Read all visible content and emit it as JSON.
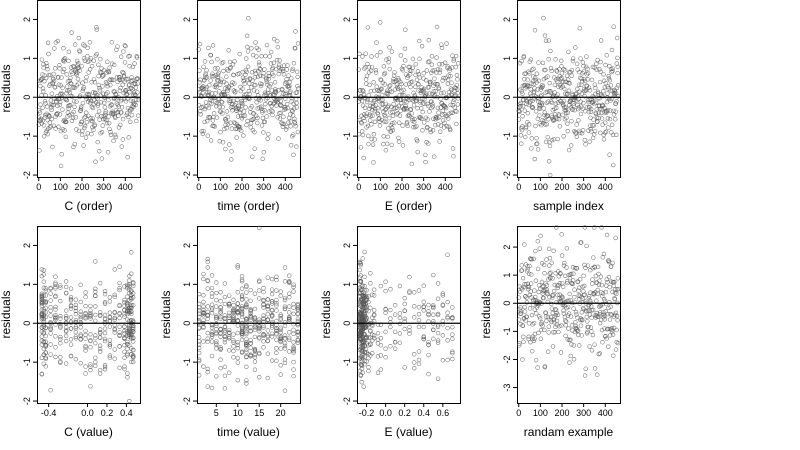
{
  "chart_data": [
    {
      "id": "c-order",
      "type": "scatter",
      "title": "",
      "xlabel": "C (order)",
      "ylabel": "residuals",
      "xlim": [
        -8,
        468
      ],
      "ylim": [
        -2.05,
        2.5
      ],
      "xticks": [
        0,
        100,
        200,
        300,
        400
      ],
      "xtick_labels": [
        "0",
        "100",
        "200",
        "300",
        "400"
      ],
      "yticks": [
        -2,
        -1,
        0,
        1,
        2
      ],
      "ytick_labels": [
        "-2",
        "-1",
        "0",
        "1",
        "2"
      ],
      "hline": 0,
      "points": {
        "distribution": "uniform-index",
        "n": 460,
        "seed": 11,
        "xmin": 0,
        "xmax": 460,
        "sd": 0.62
      },
      "color": "#555555"
    },
    {
      "id": "time-order",
      "type": "scatter",
      "title": "",
      "xlabel": "time (order)",
      "ylabel": "residuals",
      "xlim": [
        -8,
        468
      ],
      "ylim": [
        -2.05,
        2.5
      ],
      "xticks": [
        0,
        100,
        200,
        300,
        400
      ],
      "xtick_labels": [
        "0",
        "100",
        "200",
        "300",
        "400"
      ],
      "yticks": [
        -2,
        -1,
        0,
        1,
        2
      ],
      "ytick_labels": [
        "-2",
        "-1",
        "0",
        "1",
        "2"
      ],
      "hline": 0,
      "points": {
        "distribution": "uniform-index",
        "n": 460,
        "seed": 23,
        "xmin": 0,
        "xmax": 460,
        "sd": 0.62
      },
      "color": "#555555"
    },
    {
      "id": "e-order",
      "type": "scatter",
      "title": "",
      "xlabel": "E (order)",
      "ylabel": "residuals",
      "xlim": [
        -8,
        468
      ],
      "ylim": [
        -2.05,
        2.5
      ],
      "xticks": [
        0,
        100,
        200,
        300,
        400
      ],
      "xtick_labels": [
        "0",
        "100",
        "200",
        "300",
        "400"
      ],
      "yticks": [
        -2,
        -1,
        0,
        1,
        2
      ],
      "ytick_labels": [
        "-2",
        "-1",
        "0",
        "1",
        "2"
      ],
      "hline": 0,
      "points": {
        "distribution": "uniform-index",
        "n": 460,
        "seed": 37,
        "xmin": 0,
        "xmax": 460,
        "sd": 0.62
      },
      "color": "#555555"
    },
    {
      "id": "sample-index",
      "type": "scatter",
      "title": "",
      "xlabel": "sample index",
      "ylabel": "residuals",
      "xlim": [
        -8,
        468
      ],
      "ylim": [
        -2.05,
        2.5
      ],
      "xticks": [
        0,
        100,
        200,
        300,
        400
      ],
      "xtick_labels": [
        "0",
        "100",
        "200",
        "300",
        "400"
      ],
      "yticks": [
        -2,
        -1,
        0,
        1,
        2
      ],
      "ytick_labels": [
        "-2",
        "-1",
        "0",
        "1",
        "2"
      ],
      "hline": 0,
      "points": {
        "distribution": "uniform-index",
        "n": 460,
        "seed": 41,
        "xmin": 0,
        "xmax": 460,
        "sd": 0.62
      },
      "color": "#555555"
    },
    {
      "id": "c-value",
      "type": "scatter",
      "title": "",
      "xlabel": "C (value)",
      "ylabel": "residuals",
      "xlim": [
        -0.52,
        0.54
      ],
      "ylim": [
        -2.05,
        2.5
      ],
      "xticks": [
        -0.4,
        0.0,
        0.2,
        0.4
      ],
      "xtick_labels": [
        "-0.4",
        "0.0",
        "0.2",
        "0.4"
      ],
      "yticks": [
        -2,
        -1,
        0,
        1,
        2
      ],
      "ytick_labels": [
        "-2",
        "-1",
        "0",
        "1",
        "2"
      ],
      "hline": 0,
      "points": {
        "distribution": "levels",
        "seed": 53,
        "sd": 0.6,
        "levels": [
          -0.47,
          -0.45,
          -0.43,
          -0.38,
          -0.33,
          -0.28,
          -0.22,
          -0.17,
          -0.12,
          -0.07,
          -0.02,
          0.03,
          0.08,
          0.13,
          0.18,
          0.23,
          0.28,
          0.33,
          0.38,
          0.41,
          0.43,
          0.45,
          0.47
        ],
        "counts": [
          30,
          24,
          22,
          16,
          18,
          14,
          16,
          16,
          14,
          14,
          16,
          16,
          14,
          14,
          16,
          14,
          14,
          16,
          20,
          24,
          26,
          30,
          24
        ]
      },
      "color": "#555555"
    },
    {
      "id": "time-value",
      "type": "scatter",
      "title": "",
      "xlabel": "time (value)",
      "ylabel": "residuals",
      "xlim": [
        0.5,
        24.5
      ],
      "ylim": [
        -2.05,
        2.5
      ],
      "xticks": [
        5,
        10,
        15,
        20
      ],
      "xtick_labels": [
        "5",
        "10",
        "15",
        "20"
      ],
      "yticks": [
        -2,
        -1,
        0,
        1,
        2
      ],
      "ytick_labels": [
        "-2",
        "-1",
        "0",
        "1",
        "2"
      ],
      "hline": 0,
      "points": {
        "distribution": "levels",
        "seed": 67,
        "sd": 0.62,
        "levels": [
          1,
          2,
          3,
          4,
          5,
          6,
          7,
          8,
          9,
          10,
          11,
          12,
          13,
          14,
          15,
          16,
          17,
          18,
          19,
          20,
          21,
          22,
          23,
          24
        ],
        "counts": [
          18,
          18,
          18,
          18,
          18,
          20,
          18,
          18,
          20,
          22,
          30,
          32,
          20,
          18,
          18,
          18,
          18,
          18,
          18,
          18,
          18,
          18,
          18,
          18
        ]
      },
      "color": "#555555"
    },
    {
      "id": "e-value",
      "type": "scatter",
      "title": "",
      "xlabel": "E (value)",
      "ylabel": "residuals",
      "xlim": [
        -0.3,
        0.78
      ],
      "ylim": [
        -2.05,
        2.5
      ],
      "xticks": [
        -0.2,
        0.0,
        0.2,
        0.4,
        0.6
      ],
      "xtick_labels": [
        "-0.2",
        "0.0",
        "0.2",
        "0.4",
        "0.6"
      ],
      "yticks": [
        -2,
        -1,
        0,
        1,
        2
      ],
      "ytick_labels": [
        "-2",
        "-1",
        "0",
        "1",
        "2"
      ],
      "hline": 0,
      "points": {
        "distribution": "levels",
        "seed": 79,
        "sd": 0.6,
        "levels": [
          -0.27,
          -0.26,
          -0.25,
          -0.24,
          -0.23,
          -0.22,
          -0.21,
          -0.2,
          -0.18,
          -0.16,
          -0.14,
          -0.12,
          -0.08,
          -0.05,
          0.0,
          0.05,
          0.1,
          0.15,
          0.2,
          0.25,
          0.3,
          0.35,
          0.4,
          0.45,
          0.5,
          0.55,
          0.6,
          0.65,
          0.7
        ],
        "counts": [
          40,
          44,
          40,
          34,
          28,
          22,
          18,
          16,
          12,
          10,
          8,
          8,
          6,
          6,
          8,
          6,
          6,
          6,
          8,
          6,
          6,
          8,
          10,
          10,
          10,
          10,
          8,
          8,
          10
        ]
      },
      "color": "#555555"
    },
    {
      "id": "random-example",
      "type": "scatter",
      "title": "",
      "xlabel": "randam example",
      "ylabel": "residuals",
      "xlim": [
        -8,
        468
      ],
      "ylim": [
        -3.55,
        2.75
      ],
      "xticks": [
        0,
        100,
        200,
        300,
        400
      ],
      "xtick_labels": [
        "0",
        "100",
        "200",
        "300",
        "400"
      ],
      "yticks": [
        -3,
        -2,
        -1,
        0,
        1,
        2
      ],
      "ytick_labels": [
        "-3",
        "-2",
        "-1",
        "0",
        "1",
        "2"
      ],
      "hline": 0,
      "points": {
        "distribution": "uniform-index",
        "n": 460,
        "seed": 97,
        "xmin": 0,
        "xmax": 460,
        "sd": 1.0
      },
      "color": "#555555"
    }
  ]
}
